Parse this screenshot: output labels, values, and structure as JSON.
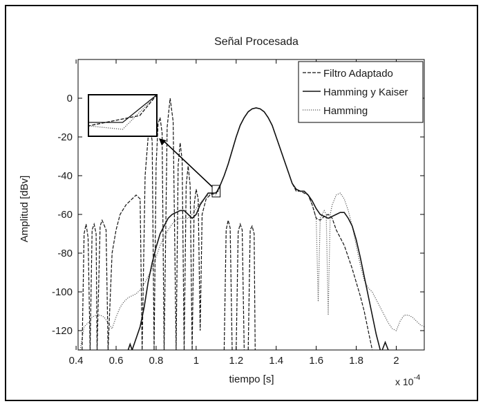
{
  "chart_data": {
    "type": "line",
    "title": "Señal Procesada",
    "xlabel": "tiempo [s]",
    "ylabel": "Amplitud [dBv]",
    "x_multiplier_label": "x 10",
    "x_multiplier_exp": "-4",
    "xlim": [
      0.41,
      2.14
    ],
    "ylim": [
      -130,
      20
    ],
    "x_ticks": [
      0.4,
      0.6,
      0.8,
      1.0,
      1.2,
      1.4,
      1.6,
      1.8,
      2.0
    ],
    "x_tick_labels": [
      "0.4",
      "0.6",
      "0.8",
      "1",
      "1.2",
      "1.4",
      "1.6",
      "1.8",
      "2"
    ],
    "y_ticks": [
      0,
      -20,
      -40,
      -60,
      -80,
      -100,
      -120
    ],
    "y_tick_labels": [
      "0",
      "-20",
      "-40",
      "-60",
      "-80",
      "-100",
      "-120"
    ],
    "grid": false,
    "legend_position": "top-right",
    "series": [
      {
        "name": "Filtro Adaptado",
        "style": "dashed",
        "color": "#111111",
        "points": [
          [
            0.43,
            -130
          ],
          [
            0.44,
            -70
          ],
          [
            0.45,
            -65
          ],
          [
            0.46,
            -72
          ],
          [
            0.47,
            -130
          ],
          [
            0.48,
            -68
          ],
          [
            0.49,
            -65
          ],
          [
            0.5,
            -70
          ],
          [
            0.505,
            -130
          ],
          [
            0.52,
            -66
          ],
          [
            0.53,
            -63
          ],
          [
            0.55,
            -68
          ],
          [
            0.56,
            -130
          ],
          [
            0.58,
            -80
          ],
          [
            0.6,
            -68
          ],
          [
            0.62,
            -60
          ],
          [
            0.65,
            -55
          ],
          [
            0.68,
            -52
          ],
          [
            0.7,
            -50
          ],
          [
            0.72,
            -52
          ],
          [
            0.73,
            -130
          ],
          [
            0.745,
            -40
          ],
          [
            0.76,
            -20
          ],
          [
            0.77,
            -15
          ],
          [
            0.78,
            -22
          ],
          [
            0.79,
            -130
          ],
          [
            0.8,
            -35
          ],
          [
            0.81,
            -13
          ],
          [
            0.82,
            -10
          ],
          [
            0.83,
            -18
          ],
          [
            0.84,
            -130
          ],
          [
            0.855,
            -15
          ],
          [
            0.87,
            0
          ],
          [
            0.885,
            -12
          ],
          [
            0.9,
            -130
          ],
          [
            0.91,
            -35
          ],
          [
            0.92,
            -23
          ],
          [
            0.93,
            -32
          ],
          [
            0.94,
            -130
          ],
          [
            0.95,
            -45
          ],
          [
            0.96,
            -35
          ],
          [
            0.97,
            -45
          ],
          [
            0.98,
            -130
          ],
          [
            0.99,
            -55
          ],
          [
            1.0,
            -47
          ],
          [
            1.01,
            -52
          ],
          [
            1.02,
            -120
          ],
          [
            1.03,
            -60
          ],
          [
            1.05,
            -52
          ],
          [
            1.07,
            -50
          ],
          [
            1.09,
            -49
          ],
          [
            1.11,
            -48
          ],
          [
            1.12,
            -45
          ],
          [
            1.14,
            -40
          ],
          [
            1.16,
            -34
          ],
          [
            1.18,
            -27
          ],
          [
            1.2,
            -20
          ],
          [
            1.22,
            -14
          ],
          [
            1.24,
            -10
          ],
          [
            1.26,
            -7
          ],
          [
            1.28,
            -5.5
          ],
          [
            1.3,
            -5
          ],
          [
            1.32,
            -5.5
          ],
          [
            1.34,
            -7
          ],
          [
            1.36,
            -10
          ],
          [
            1.38,
            -14
          ],
          [
            1.4,
            -20
          ],
          [
            1.42,
            -26
          ],
          [
            1.44,
            -32
          ],
          [
            1.46,
            -38
          ],
          [
            1.48,
            -44
          ],
          [
            1.5,
            -48
          ],
          [
            1.52,
            -48
          ],
          [
            1.54,
            -49
          ],
          [
            1.56,
            -50
          ],
          [
            1.58,
            -55
          ],
          [
            1.6,
            -62
          ],
          [
            1.62,
            -63
          ],
          [
            1.64,
            -61
          ],
          [
            1.66,
            -60
          ],
          [
            1.68,
            -62
          ],
          [
            1.7,
            -68
          ],
          [
            1.72,
            -72
          ],
          [
            1.74,
            -76
          ],
          [
            1.76,
            -82
          ],
          [
            1.78,
            -88
          ],
          [
            1.8,
            -95
          ],
          [
            1.82,
            -102
          ],
          [
            1.84,
            -110
          ],
          [
            1.86,
            -120
          ],
          [
            1.88,
            -130
          ]
        ],
        "extra_segments": [
          [
            [
              1.14,
              -130
            ],
            [
              1.15,
              -68
            ],
            [
              1.16,
              -63
            ],
            [
              1.17,
              -67
            ],
            [
              1.18,
              -130
            ]
          ],
          [
            [
              1.2,
              -130
            ],
            [
              1.21,
              -69
            ],
            [
              1.22,
              -65
            ],
            [
              1.23,
              -68
            ],
            [
              1.24,
              -130
            ]
          ],
          [
            [
              1.26,
              -130
            ],
            [
              1.27,
              -68
            ],
            [
              1.28,
              -66
            ],
            [
              1.29,
              -70
            ],
            [
              1.295,
              -130
            ]
          ]
        ]
      },
      {
        "name": "Hamming y Kaiser",
        "style": "solid",
        "color": "#111111",
        "points": [
          [
            0.68,
            -130
          ],
          [
            0.7,
            -124
          ],
          [
            0.72,
            -118
          ],
          [
            0.74,
            -108
          ],
          [
            0.76,
            -95
          ],
          [
            0.78,
            -85
          ],
          [
            0.8,
            -77
          ],
          [
            0.82,
            -70
          ],
          [
            0.84,
            -66
          ],
          [
            0.86,
            -62
          ],
          [
            0.88,
            -60
          ],
          [
            0.9,
            -59
          ],
          [
            0.92,
            -58
          ],
          [
            0.94,
            -58
          ],
          [
            0.96,
            -60
          ],
          [
            0.98,
            -62
          ],
          [
            1.0,
            -60
          ],
          [
            1.02,
            -55
          ],
          [
            1.04,
            -52
          ],
          [
            1.06,
            -49
          ],
          [
            1.08,
            -49
          ],
          [
            1.1,
            -49
          ],
          [
            1.12,
            -45
          ],
          [
            1.14,
            -40
          ],
          [
            1.16,
            -34
          ],
          [
            1.18,
            -27
          ],
          [
            1.2,
            -20
          ],
          [
            1.22,
            -14
          ],
          [
            1.24,
            -10
          ],
          [
            1.26,
            -7
          ],
          [
            1.28,
            -5.5
          ],
          [
            1.3,
            -5
          ],
          [
            1.32,
            -5.5
          ],
          [
            1.34,
            -7
          ],
          [
            1.36,
            -10
          ],
          [
            1.38,
            -14
          ],
          [
            1.4,
            -20
          ],
          [
            1.42,
            -26
          ],
          [
            1.44,
            -32
          ],
          [
            1.46,
            -38
          ],
          [
            1.48,
            -44
          ],
          [
            1.5,
            -47
          ],
          [
            1.52,
            -48
          ],
          [
            1.54,
            -48
          ],
          [
            1.56,
            -50
          ],
          [
            1.58,
            -53
          ],
          [
            1.6,
            -57
          ],
          [
            1.62,
            -60
          ],
          [
            1.64,
            -61
          ],
          [
            1.66,
            -62
          ],
          [
            1.68,
            -61
          ],
          [
            1.7,
            -60
          ],
          [
            1.72,
            -59
          ],
          [
            1.74,
            -59
          ],
          [
            1.76,
            -62
          ],
          [
            1.78,
            -66
          ],
          [
            1.8,
            -73
          ],
          [
            1.82,
            -82
          ],
          [
            1.84,
            -92
          ],
          [
            1.86,
            -102
          ],
          [
            1.88,
            -112
          ],
          [
            1.9,
            -122
          ],
          [
            1.92,
            -130
          ]
        ],
        "extra_segments": [
          [
            [
              0.66,
              -130
            ],
            [
              0.67,
              -127
            ],
            [
              0.68,
              -130
            ]
          ],
          [
            [
              1.93,
              -130
            ],
            [
              1.945,
              -126
            ],
            [
              1.96,
              -130
            ]
          ]
        ]
      },
      {
        "name": "Hamming",
        "style": "dotted",
        "color": "#555555",
        "points": [
          [
            0.42,
            -130
          ],
          [
            0.44,
            -118
          ],
          [
            0.46,
            -116
          ],
          [
            0.48,
            -113
          ],
          [
            0.5,
            -112
          ],
          [
            0.52,
            -112
          ],
          [
            0.54,
            -113
          ],
          [
            0.56,
            -116
          ],
          [
            0.58,
            -119
          ],
          [
            0.6,
            -113
          ],
          [
            0.62,
            -108
          ],
          [
            0.64,
            -105
          ],
          [
            0.66,
            -103
          ],
          [
            0.68,
            -102
          ],
          [
            0.7,
            -101
          ],
          [
            0.72,
            -99
          ],
          [
            0.74,
            -96
          ],
          [
            0.76,
            -92
          ],
          [
            0.78,
            -88
          ],
          [
            0.8,
            -82
          ],
          [
            0.82,
            -76
          ],
          [
            0.84,
            -72
          ],
          [
            0.86,
            -68
          ],
          [
            0.88,
            -65
          ],
          [
            0.9,
            -63
          ],
          [
            0.92,
            -62
          ],
          [
            0.94,
            -62
          ],
          [
            0.96,
            -62
          ],
          [
            0.98,
            -60
          ],
          [
            1.0,
            -57
          ],
          [
            1.02,
            -54
          ],
          [
            1.04,
            -52
          ],
          [
            1.06,
            -50
          ],
          [
            1.08,
            -49.5
          ],
          [
            1.1,
            -50
          ],
          [
            1.12,
            -45
          ],
          [
            1.14,
            -40
          ],
          [
            1.16,
            -34
          ],
          [
            1.18,
            -27
          ],
          [
            1.2,
            -20
          ],
          [
            1.22,
            -14
          ],
          [
            1.24,
            -10
          ],
          [
            1.26,
            -7
          ],
          [
            1.28,
            -5.5
          ],
          [
            1.3,
            -5
          ],
          [
            1.32,
            -5.5
          ],
          [
            1.34,
            -7
          ],
          [
            1.36,
            -10
          ],
          [
            1.38,
            -14
          ],
          [
            1.4,
            -20
          ],
          [
            1.42,
            -26
          ],
          [
            1.44,
            -32
          ],
          [
            1.46,
            -38
          ],
          [
            1.48,
            -44
          ],
          [
            1.5,
            -47
          ],
          [
            1.52,
            -48
          ],
          [
            1.54,
            -48
          ],
          [
            1.56,
            -50
          ],
          [
            1.58,
            -55
          ],
          [
            1.6,
            -62
          ],
          [
            1.61,
            -105
          ],
          [
            1.62,
            -62
          ],
          [
            1.64,
            -58
          ],
          [
            1.65,
            -60
          ],
          [
            1.66,
            -112
          ],
          [
            1.67,
            -60
          ],
          [
            1.68,
            -55
          ],
          [
            1.7,
            -50
          ],
          [
            1.72,
            -49
          ],
          [
            1.74,
            -52
          ],
          [
            1.76,
            -58
          ],
          [
            1.78,
            -66
          ],
          [
            1.8,
            -76
          ],
          [
            1.82,
            -86
          ],
          [
            1.84,
            -94
          ],
          [
            1.86,
            -98
          ],
          [
            1.88,
            -100
          ],
          [
            1.9,
            -104
          ],
          [
            1.92,
            -108
          ],
          [
            1.94,
            -112
          ],
          [
            1.96,
            -116
          ],
          [
            1.98,
            -119
          ],
          [
            2.0,
            -120
          ],
          [
            2.02,
            -115
          ],
          [
            2.04,
            -112
          ],
          [
            2.06,
            -112
          ],
          [
            2.08,
            -113
          ],
          [
            2.1,
            -115
          ],
          [
            2.12,
            -117
          ],
          [
            2.14,
            -118
          ]
        ]
      }
    ],
    "inset_zoom": {
      "target_x": [
        1.08,
        1.12
      ],
      "target_y": [
        -51,
        -45
      ]
    }
  }
}
